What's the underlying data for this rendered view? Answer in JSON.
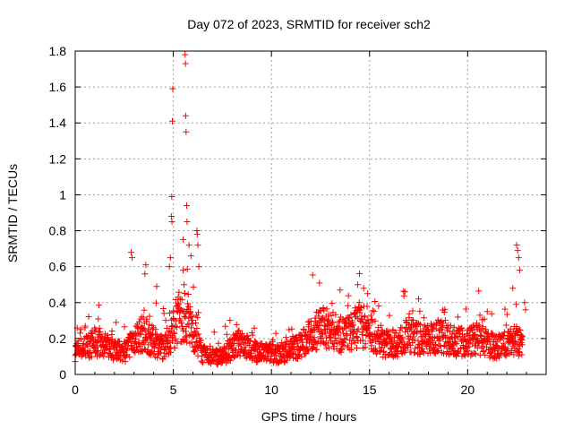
{
  "chart_data": {
    "type": "scatter",
    "title": "Day 072 of 2023, SRMTID for receiver sch2",
    "xlabel": "GPS time / hours",
    "ylabel": "SRMTID / TECUs",
    "xlim": [
      0,
      24
    ],
    "ylim": [
      0,
      1.8
    ],
    "grid": true,
    "x_ticks": [
      0,
      5,
      10,
      15,
      20
    ],
    "x_tick_labels": [
      "0",
      "5",
      "10",
      "15",
      "20"
    ],
    "y_ticks": [
      0,
      0.2,
      0.4,
      0.6,
      0.8,
      1,
      1.2,
      1.4,
      1.6,
      1.8
    ],
    "y_tick_labels": [
      "0",
      "0.2",
      "0.4",
      "0.6",
      "0.8",
      "1",
      "1.2",
      "1.4",
      "1.6",
      "1.8"
    ],
    "marker": "+",
    "series": [
      {
        "name": "SRMTID",
        "color": "#ff0000",
        "baseline": [
          [
            0.0,
            0.13
          ],
          [
            0.5,
            0.15
          ],
          [
            1.0,
            0.18
          ],
          [
            1.5,
            0.16
          ],
          [
            2.0,
            0.14
          ],
          [
            2.5,
            0.12
          ],
          [
            3.0,
            0.2
          ],
          [
            3.5,
            0.23
          ],
          [
            4.0,
            0.18
          ],
          [
            4.5,
            0.15
          ],
          [
            4.9,
            0.22
          ],
          [
            5.2,
            0.3
          ],
          [
            5.6,
            0.32
          ],
          [
            6.0,
            0.24
          ],
          [
            6.5,
            0.11
          ],
          [
            7.0,
            0.1
          ],
          [
            7.5,
            0.1
          ],
          [
            8.0,
            0.15
          ],
          [
            8.5,
            0.18
          ],
          [
            9.0,
            0.13
          ],
          [
            9.5,
            0.12
          ],
          [
            10.0,
            0.12
          ],
          [
            10.5,
            0.11
          ],
          [
            11.0,
            0.14
          ],
          [
            11.5,
            0.16
          ],
          [
            12.0,
            0.22
          ],
          [
            12.5,
            0.26
          ],
          [
            13.0,
            0.25
          ],
          [
            13.5,
            0.22
          ],
          [
            14.0,
            0.23
          ],
          [
            14.5,
            0.28
          ],
          [
            15.0,
            0.24
          ],
          [
            15.5,
            0.18
          ],
          [
            16.0,
            0.17
          ],
          [
            16.5,
            0.18
          ],
          [
            17.0,
            0.22
          ],
          [
            17.5,
            0.2
          ],
          [
            18.0,
            0.19
          ],
          [
            18.5,
            0.22
          ],
          [
            19.0,
            0.2
          ],
          [
            19.5,
            0.18
          ],
          [
            20.0,
            0.18
          ],
          [
            20.5,
            0.2
          ],
          [
            21.0,
            0.17
          ],
          [
            21.5,
            0.15
          ],
          [
            22.0,
            0.18
          ],
          [
            22.5,
            0.2
          ],
          [
            22.8,
            0.15
          ]
        ],
        "peaks": [
          [
            2.85,
            0.68
          ],
          [
            2.9,
            0.65
          ],
          [
            3.6,
            0.61
          ],
          [
            3.55,
            0.56
          ],
          [
            4.15,
            0.49
          ],
          [
            4.8,
            0.6
          ],
          [
            4.85,
            0.65
          ],
          [
            4.9,
            0.88
          ],
          [
            4.92,
            0.99
          ],
          [
            4.93,
            0.85
          ],
          [
            4.95,
            1.41
          ],
          [
            4.97,
            1.59
          ],
          [
            5.5,
            0.58
          ],
          [
            5.55,
            0.5
          ],
          [
            5.6,
            1.78
          ],
          [
            5.62,
            1.73
          ],
          [
            5.63,
            1.44
          ],
          [
            5.65,
            1.35
          ],
          [
            5.68,
            0.94
          ],
          [
            5.7,
            0.85
          ],
          [
            5.8,
            0.72
          ],
          [
            5.9,
            0.66
          ],
          [
            6.2,
            0.8
          ],
          [
            6.22,
            0.78
          ],
          [
            6.25,
            0.72
          ],
          [
            6.3,
            0.6
          ],
          [
            13.5,
            0.47
          ],
          [
            14.4,
            0.5
          ],
          [
            14.7,
            0.48
          ],
          [
            14.9,
            0.45
          ],
          [
            16.8,
            0.46
          ],
          [
            17.5,
            0.42
          ],
          [
            19.5,
            0.32
          ],
          [
            21.0,
            0.35
          ],
          [
            22.3,
            0.48
          ],
          [
            22.5,
            0.72
          ],
          [
            22.55,
            0.69
          ],
          [
            22.6,
            0.65
          ],
          [
            22.65,
            0.58
          ],
          [
            22.9,
            0.4
          ],
          [
            22.95,
            0.36
          ]
        ]
      }
    ]
  }
}
